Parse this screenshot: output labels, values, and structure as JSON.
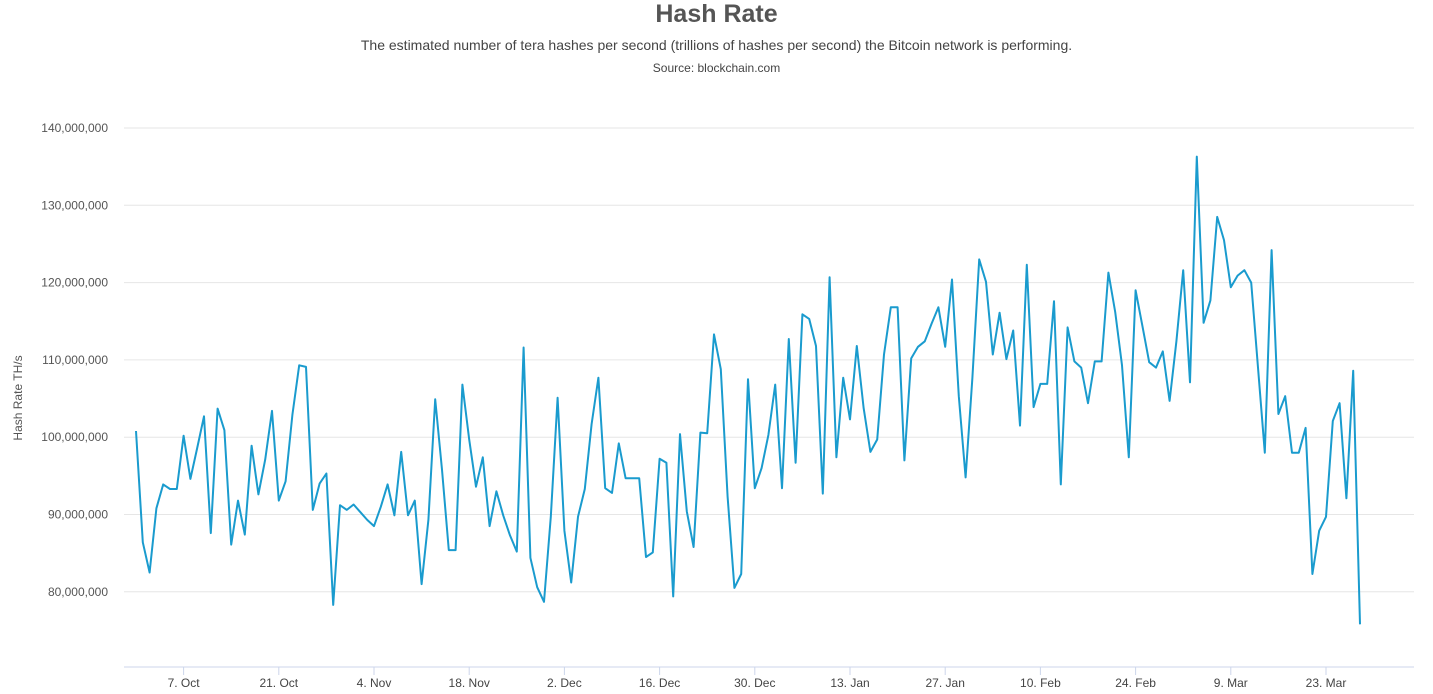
{
  "chart_data": {
    "type": "line",
    "title": "Hash Rate",
    "subtitle": "The estimated number of tera hashes per second (trillions of hashes per second) the Bitcoin network is performing.",
    "source": "Source: blockchain.com",
    "ylabel": "Hash Rate TH/s",
    "xlabel": "",
    "grid": true,
    "ylim": [
      70000000,
      140000000
    ],
    "y_ticks": [
      {
        "value": 80000000,
        "label": "80,000,000"
      },
      {
        "value": 90000000,
        "label": "90,000,000"
      },
      {
        "value": 100000000,
        "label": "100,000,000"
      },
      {
        "value": 110000000,
        "label": "110,000,000"
      },
      {
        "value": 120000000,
        "label": "120,000,000"
      },
      {
        "value": 130000000,
        "label": "130,000,000"
      },
      {
        "value": 140000000,
        "label": "140,000,000"
      }
    ],
    "x_ticks": [
      {
        "day": 8,
        "label": "7. Oct"
      },
      {
        "day": 22,
        "label": "21. Oct"
      },
      {
        "day": 36,
        "label": "4. Nov"
      },
      {
        "day": 50,
        "label": "18. Nov"
      },
      {
        "day": 64,
        "label": "2. Dec"
      },
      {
        "day": 78,
        "label": "16. Dec"
      },
      {
        "day": 92,
        "label": "30. Dec"
      },
      {
        "day": 106,
        "label": "13. Jan"
      },
      {
        "day": 120,
        "label": "27. Jan"
      },
      {
        "day": 134,
        "label": "10. Feb"
      },
      {
        "day": 148,
        "label": "24. Feb"
      },
      {
        "day": 162,
        "label": "9. Mar"
      },
      {
        "day": 176,
        "label": "23. Mar"
      }
    ],
    "x_range": [
      0,
      180
    ],
    "series": [
      {
        "color": "#1a9bce",
        "points": [
          [
            1,
            100800000
          ],
          [
            2,
            86400000
          ],
          [
            3,
            82500000
          ],
          [
            4,
            90800000
          ],
          [
            5,
            93900000
          ],
          [
            6,
            93300000
          ],
          [
            7,
            93300000
          ],
          [
            8,
            100200000
          ],
          [
            9,
            94600000
          ],
          [
            10,
            98600000
          ],
          [
            11,
            102700000
          ],
          [
            12,
            87600000
          ],
          [
            13,
            103700000
          ],
          [
            14,
            100900000
          ],
          [
            15,
            86100000
          ],
          [
            16,
            91800000
          ],
          [
            17,
            87400000
          ],
          [
            18,
            98900000
          ],
          [
            19,
            92600000
          ],
          [
            20,
            97100000
          ],
          [
            21,
            103400000
          ],
          [
            22,
            91800000
          ],
          [
            23,
            94300000
          ],
          [
            24,
            102900000
          ],
          [
            25,
            109300000
          ],
          [
            26,
            109100000
          ],
          [
            27,
            90600000
          ],
          [
            28,
            94000000
          ],
          [
            29,
            95300000
          ],
          [
            30,
            78300000
          ],
          [
            31,
            91200000
          ],
          [
            32,
            90600000
          ],
          [
            33,
            91300000
          ],
          [
            34,
            90300000
          ],
          [
            35,
            89300000
          ],
          [
            36,
            88500000
          ],
          [
            37,
            91000000
          ],
          [
            38,
            93900000
          ],
          [
            39,
            89900000
          ],
          [
            40,
            98100000
          ],
          [
            41,
            89900000
          ],
          [
            42,
            91800000
          ],
          [
            43,
            81000000
          ],
          [
            44,
            89300000
          ],
          [
            45,
            104900000
          ],
          [
            46,
            95800000
          ],
          [
            47,
            85400000
          ],
          [
            48,
            85400000
          ],
          [
            49,
            106800000
          ],
          [
            50,
            99700000
          ],
          [
            51,
            93600000
          ],
          [
            52,
            97400000
          ],
          [
            53,
            88500000
          ],
          [
            54,
            93000000
          ],
          [
            55,
            89900000
          ],
          [
            56,
            87300000
          ],
          [
            57,
            85200000
          ],
          [
            58,
            111600000
          ],
          [
            59,
            84400000
          ],
          [
            60,
            80600000
          ],
          [
            61,
            78700000
          ],
          [
            62,
            89700000
          ],
          [
            63,
            105100000
          ],
          [
            64,
            87900000
          ],
          [
            65,
            81200000
          ],
          [
            66,
            89700000
          ],
          [
            67,
            93300000
          ],
          [
            68,
            101700000
          ],
          [
            69,
            107700000
          ],
          [
            70,
            93400000
          ],
          [
            71,
            92800000
          ],
          [
            72,
            99200000
          ],
          [
            73,
            94700000
          ],
          [
            74,
            94700000
          ],
          [
            75,
            94700000
          ],
          [
            76,
            84500000
          ],
          [
            77,
            85100000
          ],
          [
            78,
            97200000
          ],
          [
            79,
            96700000
          ],
          [
            80,
            79400000
          ],
          [
            81,
            100400000
          ],
          [
            82,
            90400000
          ],
          [
            83,
            85800000
          ],
          [
            84,
            100600000
          ],
          [
            85,
            100500000
          ],
          [
            86,
            113300000
          ],
          [
            87,
            108800000
          ],
          [
            88,
            92300000
          ],
          [
            89,
            80500000
          ],
          [
            90,
            82300000
          ],
          [
            91,
            107500000
          ],
          [
            92,
            93400000
          ],
          [
            93,
            96000000
          ],
          [
            94,
            100300000
          ],
          [
            95,
            106800000
          ],
          [
            96,
            93400000
          ],
          [
            97,
            112700000
          ],
          [
            98,
            96700000
          ],
          [
            99,
            115900000
          ],
          [
            100,
            115300000
          ],
          [
            101,
            111800000
          ],
          [
            102,
            92700000
          ],
          [
            103,
            120700000
          ],
          [
            104,
            97400000
          ],
          [
            105,
            107700000
          ],
          [
            106,
            102300000
          ],
          [
            107,
            111800000
          ],
          [
            108,
            103800000
          ],
          [
            109,
            98100000
          ],
          [
            110,
            99700000
          ],
          [
            111,
            110700000
          ],
          [
            112,
            116800000
          ],
          [
            113,
            116800000
          ],
          [
            114,
            97000000
          ],
          [
            115,
            110200000
          ],
          [
            116,
            111700000
          ],
          [
            117,
            112400000
          ],
          [
            118,
            114700000
          ],
          [
            119,
            116800000
          ],
          [
            120,
            111700000
          ],
          [
            121,
            120400000
          ],
          [
            122,
            105300000
          ],
          [
            123,
            94800000
          ],
          [
            124,
            107700000
          ],
          [
            125,
            123000000
          ],
          [
            126,
            120100000
          ],
          [
            127,
            110700000
          ],
          [
            128,
            116100000
          ],
          [
            129,
            110100000
          ],
          [
            130,
            113800000
          ],
          [
            131,
            101500000
          ],
          [
            132,
            122300000
          ],
          [
            133,
            103900000
          ],
          [
            134,
            106900000
          ],
          [
            135,
            106900000
          ],
          [
            136,
            117600000
          ],
          [
            137,
            93900000
          ],
          [
            138,
            114200000
          ],
          [
            139,
            109800000
          ],
          [
            140,
            109000000
          ],
          [
            141,
            104400000
          ],
          [
            142,
            109800000
          ],
          [
            143,
            109800000
          ],
          [
            144,
            121300000
          ],
          [
            145,
            116200000
          ],
          [
            146,
            109300000
          ],
          [
            147,
            97400000
          ],
          [
            148,
            119000000
          ],
          [
            149,
            114400000
          ],
          [
            150,
            109700000
          ],
          [
            151,
            109000000
          ],
          [
            152,
            111100000
          ],
          [
            153,
            104700000
          ],
          [
            154,
            112400000
          ],
          [
            155,
            121600000
          ],
          [
            156,
            107100000
          ],
          [
            157,
            136300000
          ],
          [
            158,
            114800000
          ],
          [
            159,
            117700000
          ],
          [
            160,
            128500000
          ],
          [
            161,
            125500000
          ],
          [
            162,
            119400000
          ],
          [
            163,
            120900000
          ],
          [
            164,
            121600000
          ],
          [
            165,
            120000000
          ],
          [
            166,
            109000000
          ],
          [
            167,
            98000000
          ],
          [
            168,
            124200000
          ],
          [
            169,
            103000000
          ],
          [
            170,
            105300000
          ],
          [
            171,
            98000000
          ],
          [
            172,
            98000000
          ],
          [
            173,
            101200000
          ],
          [
            174,
            82300000
          ],
          [
            175,
            87900000
          ],
          [
            176,
            89700000
          ],
          [
            177,
            102100000
          ],
          [
            178,
            104400000
          ],
          [
            179,
            92100000
          ],
          [
            180,
            108600000
          ],
          [
            181,
            75800000
          ]
        ]
      }
    ]
  }
}
